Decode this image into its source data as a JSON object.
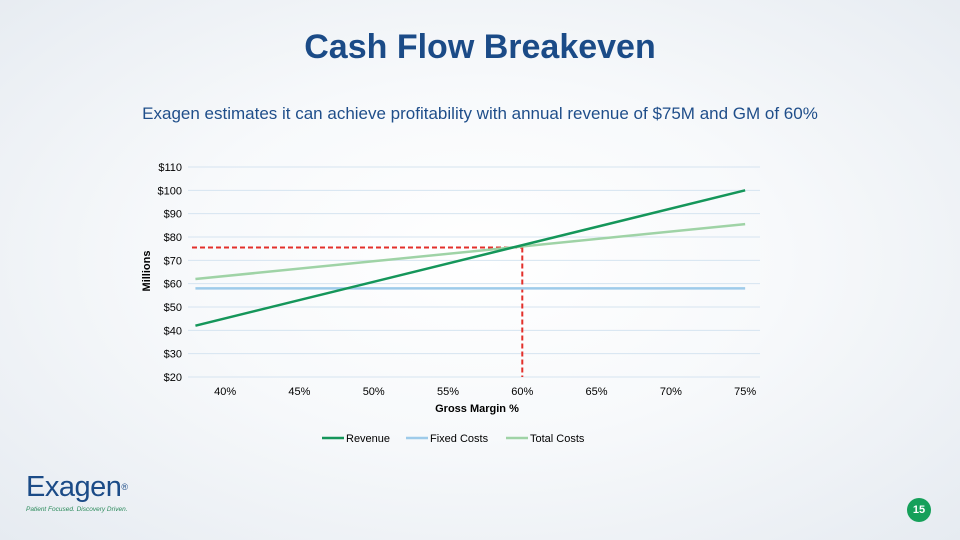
{
  "slide": {
    "title": "Cash Flow Breakeven",
    "subtitle": "Exagen estimates it can achieve profitability with annual revenue of $75M and GM of 60%",
    "page_number": "15"
  },
  "logo": {
    "wordmark": "Exagen",
    "registered": "®",
    "tagline": "Patient Focused. Discovery Driven."
  },
  "chart_data": {
    "type": "line",
    "title": "",
    "xlabel": "Gross Margin %",
    "ylabel": "Millions",
    "x": [
      0.38,
      0.75
    ],
    "xlim": [
      0.375,
      0.76
    ],
    "x_ticks": [
      0.4,
      0.45,
      0.5,
      0.55,
      0.6,
      0.65,
      0.7,
      0.75
    ],
    "x_tick_labels": [
      "40%",
      "45%",
      "50%",
      "55%",
      "60%",
      "65%",
      "70%",
      "75%"
    ],
    "ylim": [
      20,
      110
    ],
    "y_ticks": [
      20,
      30,
      40,
      50,
      60,
      70,
      80,
      90,
      100,
      110
    ],
    "y_tick_labels": [
      "$20",
      "$30",
      "$40",
      "$50",
      "$60",
      "$70",
      "$80",
      "$90",
      "$100",
      "$110"
    ],
    "grid": "horizontal",
    "legend": "bottom-center",
    "series": [
      {
        "name": "Revenue",
        "color": "#15965a",
        "values": [
          42,
          100
        ]
      },
      {
        "name": "Fixed Costs",
        "color": "#9ecbea",
        "values": [
          58,
          58
        ]
      },
      {
        "name": "Total Costs",
        "color": "#9fd3a6",
        "values": [
          62,
          85.5
        ]
      }
    ],
    "breakeven": {
      "x": 0.6,
      "y": 75.5,
      "color": "#e3302b"
    }
  }
}
